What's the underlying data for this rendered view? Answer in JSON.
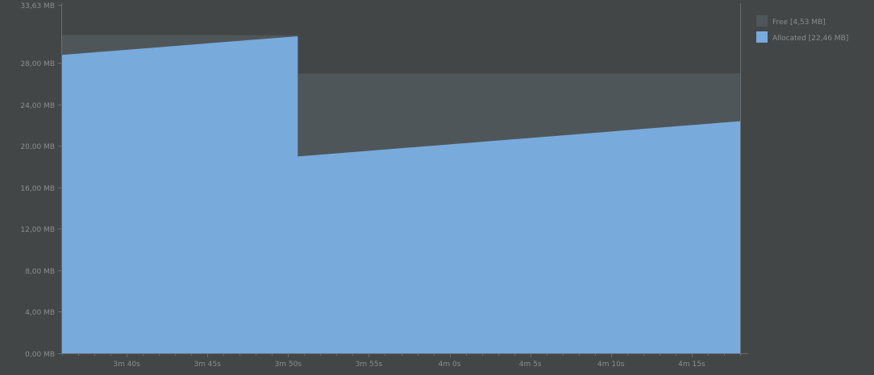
{
  "chart_data": {
    "type": "area",
    "stacked": true,
    "title": "",
    "xlabel": "",
    "ylabel": "",
    "ylim": [
      0,
      33.63
    ],
    "xlim_seconds": [
      216,
      258
    ],
    "y_ticks": [
      {
        "value": 0,
        "label": "0,00 MB"
      },
      {
        "value": 4,
        "label": "4,00 MB"
      },
      {
        "value": 8,
        "label": "8,00 MB"
      },
      {
        "value": 12,
        "label": "12,00 MB"
      },
      {
        "value": 16,
        "label": "16,00 MB"
      },
      {
        "value": 20,
        "label": "20,00 MB"
      },
      {
        "value": 24,
        "label": "24,00 MB"
      },
      {
        "value": 28,
        "label": "28,00 MB"
      },
      {
        "value": 33.63,
        "label": "33,63 MB"
      }
    ],
    "x_ticks": [
      {
        "value": 220,
        "label": "3m 40s"
      },
      {
        "value": 225,
        "label": "3m 45s"
      },
      {
        "value": 230,
        "label": "3m 50s"
      },
      {
        "value": 235,
        "label": "3m 55s"
      },
      {
        "value": 240,
        "label": "4m 0s"
      },
      {
        "value": 245,
        "label": "4m 5s"
      },
      {
        "value": 250,
        "label": "4m 10s"
      },
      {
        "value": 255,
        "label": "4m 15s"
      }
    ],
    "series": [
      {
        "name": "Free [4,53 MB]",
        "role": "total",
        "color": "#4f5659",
        "points": [
          [
            216,
            30.7
          ],
          [
            230.6,
            30.7
          ],
          [
            230.6,
            27.0
          ],
          [
            258,
            27.0
          ]
        ]
      },
      {
        "name": "Allocated [22,46 MB]",
        "role": "allocated",
        "color": "#78aadc",
        "points": [
          [
            216,
            28.8
          ],
          [
            230.6,
            30.6
          ],
          [
            230.6,
            19.0
          ],
          [
            258,
            22.4
          ]
        ]
      }
    ],
    "legend": {
      "position": "top-right",
      "entries": [
        {
          "label": "Free [4,53 MB]",
          "color": "#4f5659"
        },
        {
          "label": "Allocated [22,46 MB]",
          "color": "#78aadc"
        }
      ]
    },
    "grid": false
  }
}
